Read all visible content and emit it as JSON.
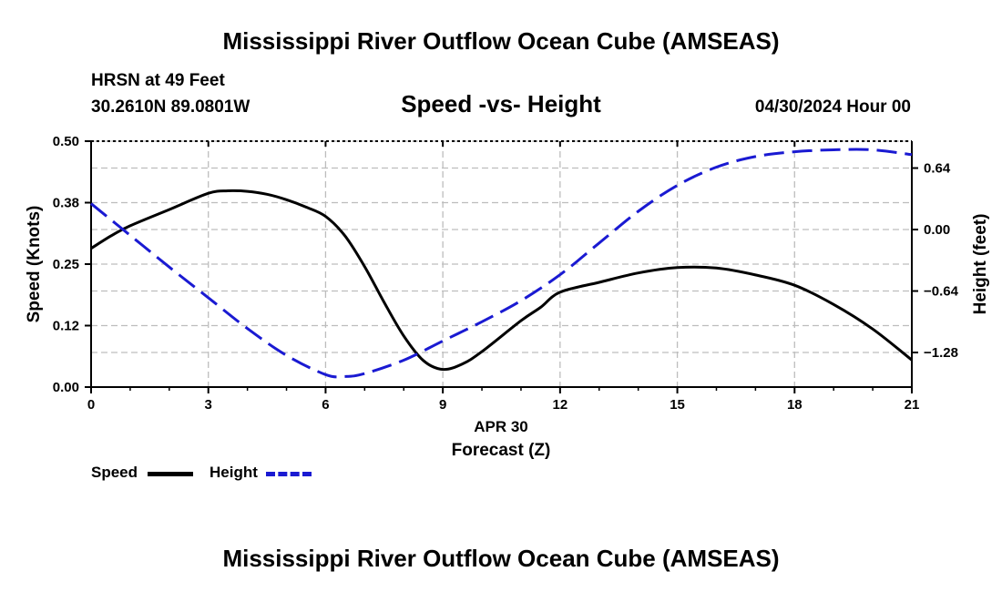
{
  "header": {
    "title": "Mississippi River Outflow Ocean Cube (AMSEAS)",
    "station": "HRSN at 49 Feet",
    "coords": "30.2610N  89.0801W",
    "subtitle": "Speed -vs- Height",
    "datetime": "04/30/2024 Hour 00"
  },
  "footer": {
    "title": "Mississippi River Outflow Ocean Cube (AMSEAS)"
  },
  "legend": {
    "speed_label": "Speed",
    "height_label": "Height"
  },
  "colors": {
    "speed": "#000000",
    "height": "#1a1ad2",
    "grid": "#bdbdbd"
  },
  "chart_data": {
    "type": "line",
    "title": "Speed -vs- Height",
    "xlabel": "Forecast (Z)",
    "xlabel_date": "APR 30",
    "ylabel_left": "Speed (Knots)",
    "ylabel_right": "Height (feet)",
    "xlim": [
      0,
      21
    ],
    "ylim_left": [
      0,
      0.5
    ],
    "ylim_right": [
      -1.64,
      0.92
    ],
    "x_ticks": [
      0,
      3,
      6,
      9,
      12,
      15,
      18,
      21
    ],
    "x_tick_labels": [
      "0",
      "3",
      "6",
      "9",
      "12",
      "15",
      "18",
      "21"
    ],
    "y_left_ticks": [
      0.0,
      0.125,
      0.25,
      0.375,
      0.5
    ],
    "y_left_tick_labels": [
      "0.00",
      "0.12",
      "0.25",
      "0.38",
      "0.50"
    ],
    "y_right_ticks": [
      -1.28,
      -0.64,
      0.0,
      0.64
    ],
    "y_right_tick_labels": [
      "−1.28",
      "−0.64",
      "0.00",
      "0.64"
    ],
    "grid": true,
    "series": [
      {
        "name": "Speed",
        "axis": "left",
        "style": "solid",
        "x": [
          0,
          0.5,
          1,
          2,
          3,
          3.5,
          4,
          4.5,
          5,
          5.5,
          6,
          6.5,
          7,
          7.5,
          8,
          8.5,
          9,
          9.5,
          10,
          11,
          11.5,
          12,
          13,
          14,
          15,
          16,
          17,
          18,
          19,
          20,
          21
        ],
        "values": [
          0.282,
          0.307,
          0.328,
          0.361,
          0.394,
          0.399,
          0.398,
          0.392,
          0.381,
          0.366,
          0.347,
          0.307,
          0.245,
          0.172,
          0.104,
          0.054,
          0.036,
          0.047,
          0.072,
          0.135,
          0.162,
          0.193,
          0.213,
          0.232,
          0.243,
          0.242,
          0.228,
          0.207,
          0.168,
          0.118,
          0.055
        ]
      },
      {
        "name": "Height",
        "axis": "right",
        "style": "dashed",
        "x": [
          0,
          1,
          2,
          3,
          4,
          5,
          6,
          6.5,
          7,
          8,
          9,
          10,
          11,
          12,
          13,
          14,
          15,
          16,
          17,
          18,
          19,
          20,
          21
        ],
        "values": [
          0.27,
          -0.06,
          -0.39,
          -0.71,
          -1.03,
          -1.31,
          -1.51,
          -1.53,
          -1.5,
          -1.36,
          -1.16,
          -0.96,
          -0.74,
          -0.47,
          -0.14,
          0.19,
          0.46,
          0.65,
          0.76,
          0.81,
          0.83,
          0.83,
          0.78
        ]
      }
    ]
  }
}
